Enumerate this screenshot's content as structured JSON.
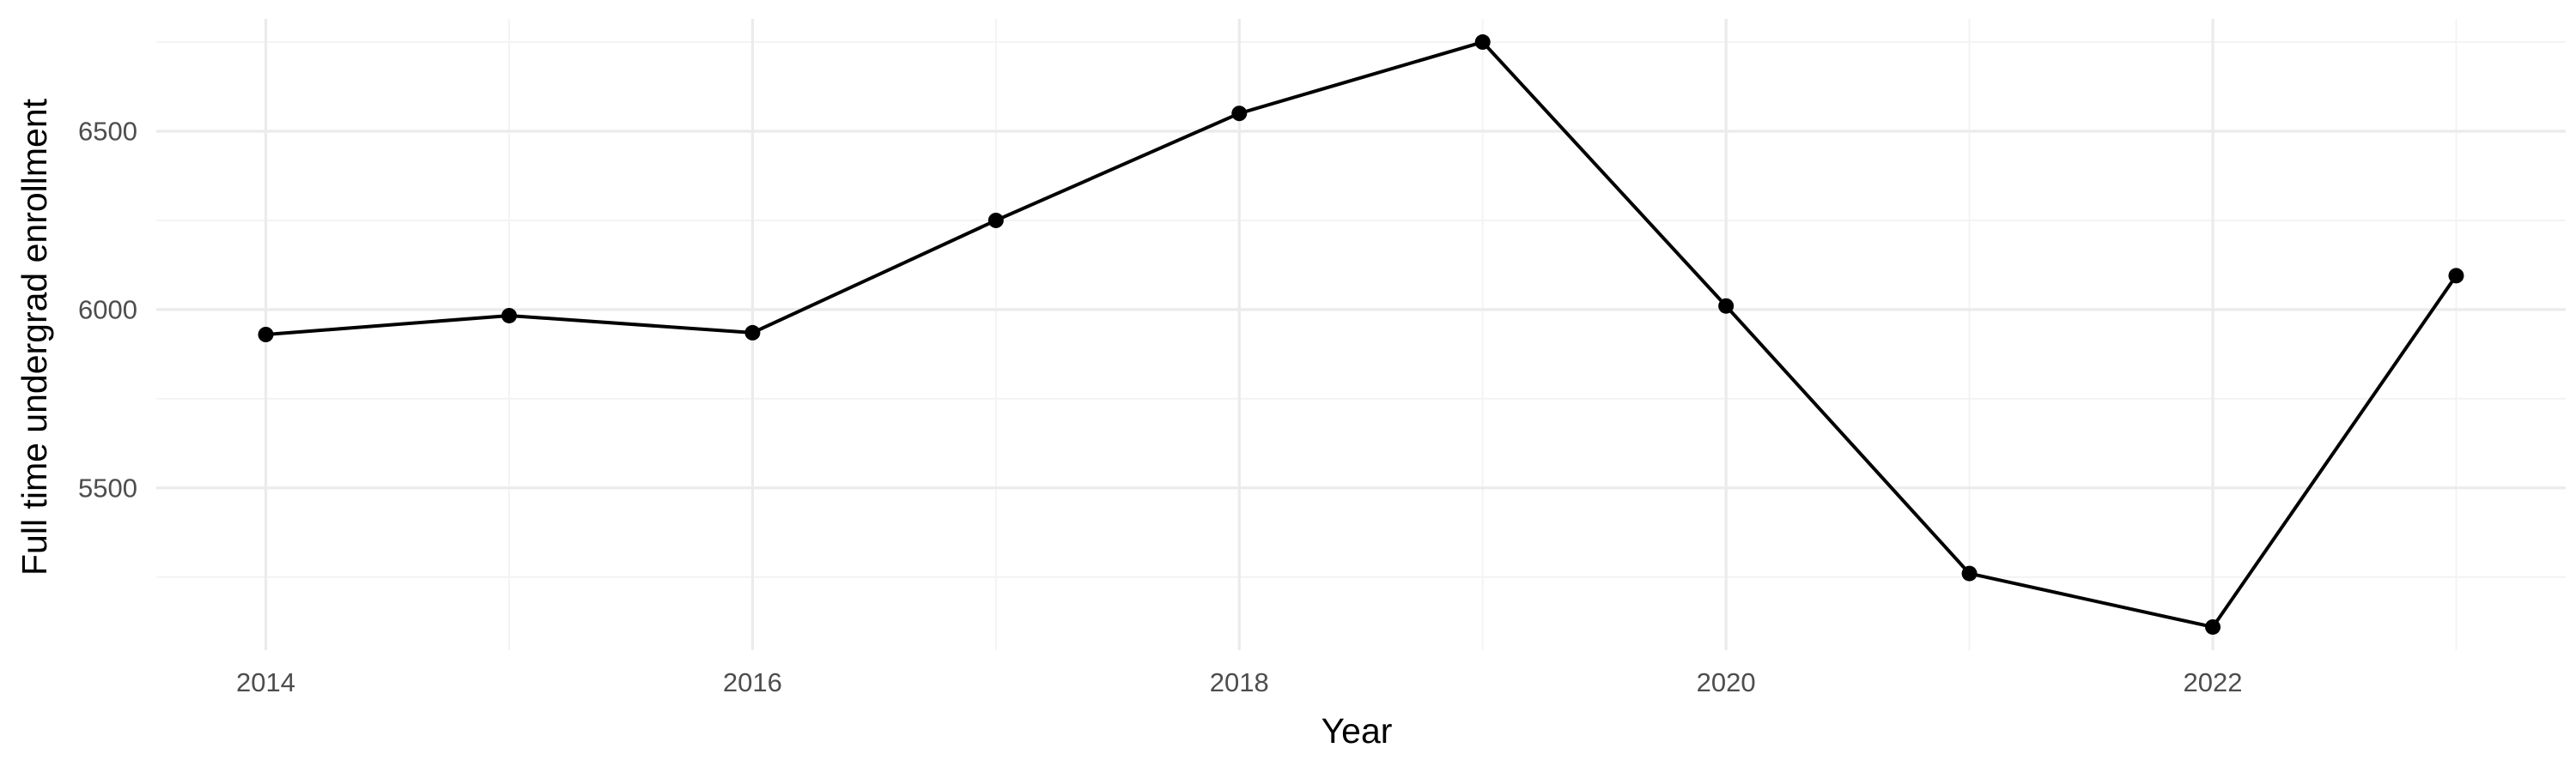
{
  "chart_data": {
    "type": "line",
    "title": "",
    "xlabel": "Year",
    "ylabel": "Full time undergrad enrollment",
    "x": [
      2014,
      2015,
      2016,
      2017,
      2018,
      2019,
      2020,
      2021,
      2022,
      2023
    ],
    "series": [
      {
        "values": [
          5930,
          5983,
          5935,
          6250,
          6550,
          6750,
          6010,
          5260,
          5110,
          6095
        ],
        "color": "#000000"
      }
    ],
    "xlim": [
      2013.55,
      2023.45
    ],
    "ylim": [
      5045,
      6815
    ],
    "x_ticks": [
      2014,
      2016,
      2018,
      2020,
      2022
    ],
    "x_tick_labels": [
      "2014",
      "2016",
      "2018",
      "2020",
      "2022"
    ],
    "x_minor_ticks": [
      2015,
      2017,
      2019,
      2021,
      2023
    ],
    "y_ticks": [
      5500,
      6000,
      6500
    ],
    "y_tick_labels": [
      "5500",
      "6000",
      "6500"
    ],
    "y_minor_ticks": [
      5250,
      5750,
      6250,
      6750
    ],
    "grid": true,
    "legend": "none"
  }
}
